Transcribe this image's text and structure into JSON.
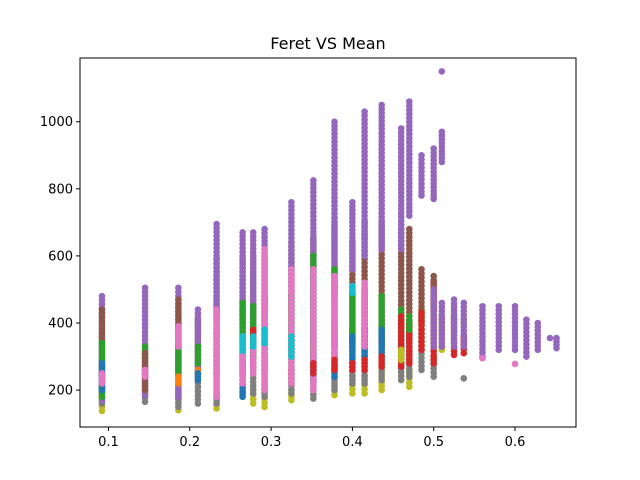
{
  "chart_data": {
    "type": "scatter",
    "title": "Feret VS Mean",
    "xlabel": "",
    "ylabel": "",
    "xlim": [
      0.065,
      0.675
    ],
    "ylim": [
      90,
      1190
    ],
    "xticks": [
      0.1,
      0.2,
      0.3,
      0.4,
      0.5,
      0.6
    ],
    "xtick_labels": [
      "0.1",
      "0.2",
      "0.3",
      "0.4",
      "0.5",
      "0.6"
    ],
    "yticks": [
      200,
      400,
      600,
      800,
      1000
    ],
    "ytick_labels": [
      "200",
      "400",
      "600",
      "800",
      "1000"
    ],
    "grid": false,
    "legend": "none",
    "marker_size": 6,
    "columns": [
      {
        "x": 0.092,
        "segments": [
          {
            "color": "#bcbd22",
            "lo": 138,
            "hi": 190
          },
          {
            "color": "#7f7f7f",
            "lo": 160,
            "hi": 290
          },
          {
            "color": "#9467bd",
            "lo": 170,
            "hi": 480
          },
          {
            "color": "#8c564b",
            "lo": 200,
            "hi": 440
          },
          {
            "color": "#2ca02c",
            "lo": 180,
            "hi": 340
          },
          {
            "color": "#1f77b4",
            "lo": 200,
            "hi": 280
          },
          {
            "color": "#e377c2",
            "lo": 220,
            "hi": 250
          }
        ]
      },
      {
        "x": 0.145,
        "segments": [
          {
            "color": "#7f7f7f",
            "lo": 165,
            "hi": 260
          },
          {
            "color": "#9467bd",
            "lo": 185,
            "hi": 505
          },
          {
            "color": "#2ca02c",
            "lo": 250,
            "hi": 330
          },
          {
            "color": "#8c564b",
            "lo": 200,
            "hi": 310
          },
          {
            "color": "#e377c2",
            "lo": 240,
            "hi": 260
          }
        ]
      },
      {
        "x": 0.186,
        "segments": [
          {
            "color": "#bcbd22",
            "lo": 140,
            "hi": 200
          },
          {
            "color": "#7f7f7f",
            "lo": 150,
            "hi": 300
          },
          {
            "color": "#9467bd",
            "lo": 180,
            "hi": 505
          },
          {
            "color": "#8c564b",
            "lo": 260,
            "hi": 470
          },
          {
            "color": "#2ca02c",
            "lo": 250,
            "hi": 330
          },
          {
            "color": "#e377c2",
            "lo": 330,
            "hi": 390
          },
          {
            "color": "#ff7f0e",
            "lo": 220,
            "hi": 240
          }
        ]
      },
      {
        "x": 0.21,
        "segments": [
          {
            "color": "#7f7f7f",
            "lo": 160,
            "hi": 270
          },
          {
            "color": "#8c564b",
            "lo": 260,
            "hi": 410
          },
          {
            "color": "#9467bd",
            "lo": 250,
            "hi": 440
          },
          {
            "color": "#2ca02c",
            "lo": 280,
            "hi": 330
          },
          {
            "color": "#ff7f0e",
            "lo": 240,
            "hi": 260
          },
          {
            "color": "#1f77b4",
            "lo": 230,
            "hi": 250
          }
        ]
      },
      {
        "x": 0.233,
        "segments": [
          {
            "color": "#bcbd22",
            "lo": 145,
            "hi": 190
          },
          {
            "color": "#7f7f7f",
            "lo": 160,
            "hi": 300
          },
          {
            "color": "#8c564b",
            "lo": 250,
            "hi": 590
          },
          {
            "color": "#9467bd",
            "lo": 400,
            "hi": 695
          },
          {
            "color": "#2ca02c",
            "lo": 300,
            "hi": 380
          },
          {
            "color": "#e377c2",
            "lo": 180,
            "hi": 440
          }
        ]
      },
      {
        "x": 0.265,
        "segments": [
          {
            "color": "#7f7f7f",
            "lo": 185,
            "hi": 300
          },
          {
            "color": "#8c564b",
            "lo": 250,
            "hi": 590
          },
          {
            "color": "#9467bd",
            "lo": 400,
            "hi": 670
          },
          {
            "color": "#2ca02c",
            "lo": 290,
            "hi": 460
          },
          {
            "color": "#1f77b4",
            "lo": 180,
            "hi": 280
          },
          {
            "color": "#17becf",
            "lo": 300,
            "hi": 360
          },
          {
            "color": "#e377c2",
            "lo": 220,
            "hi": 300
          }
        ]
      },
      {
        "x": 0.278,
        "segments": [
          {
            "color": "#bcbd22",
            "lo": 160,
            "hi": 200
          },
          {
            "color": "#7f7f7f",
            "lo": 190,
            "hi": 340
          },
          {
            "color": "#8c564b",
            "lo": 270,
            "hi": 600
          },
          {
            "color": "#9467bd",
            "lo": 420,
            "hi": 670
          },
          {
            "color": "#2ca02c",
            "lo": 300,
            "hi": 450
          },
          {
            "color": "#d62728",
            "lo": 350,
            "hi": 380
          },
          {
            "color": "#e377c2",
            "lo": 250,
            "hi": 330
          },
          {
            "color": "#17becf",
            "lo": 330,
            "hi": 360
          }
        ]
      },
      {
        "x": 0.292,
        "segments": [
          {
            "color": "#bcbd22",
            "lo": 150,
            "hi": 200
          },
          {
            "color": "#7f7f7f",
            "lo": 180,
            "hi": 300
          },
          {
            "color": "#8c564b",
            "lo": 260,
            "hi": 600
          },
          {
            "color": "#9467bd",
            "lo": 420,
            "hi": 680
          },
          {
            "color": "#2ca02c",
            "lo": 310,
            "hi": 470
          },
          {
            "color": "#e377c2",
            "lo": 200,
            "hi": 620
          },
          {
            "color": "#17becf",
            "lo": 340,
            "hi": 380
          }
        ]
      },
      {
        "x": 0.325,
        "segments": [
          {
            "color": "#bcbd22",
            "lo": 170,
            "hi": 200
          },
          {
            "color": "#7f7f7f",
            "lo": 190,
            "hi": 340
          },
          {
            "color": "#8c564b",
            "lo": 280,
            "hi": 640
          },
          {
            "color": "#9467bd",
            "lo": 440,
            "hi": 760
          },
          {
            "color": "#2ca02c",
            "lo": 320,
            "hi": 480
          },
          {
            "color": "#d62728",
            "lo": 220,
            "hi": 260
          },
          {
            "color": "#e377c2",
            "lo": 220,
            "hi": 560
          },
          {
            "color": "#17becf",
            "lo": 300,
            "hi": 360
          }
        ]
      },
      {
        "x": 0.352,
        "segments": [
          {
            "color": "#bcbd22",
            "lo": 175,
            "hi": 200
          },
          {
            "color": "#7f7f7f",
            "lo": 175,
            "hi": 330
          },
          {
            "color": "#8c564b",
            "lo": 270,
            "hi": 650
          },
          {
            "color": "#9467bd",
            "lo": 420,
            "hi": 825
          },
          {
            "color": "#2ca02c",
            "lo": 300,
            "hi": 600
          },
          {
            "color": "#1f77b4",
            "lo": 230,
            "hi": 300
          },
          {
            "color": "#e377c2",
            "lo": 200,
            "hi": 560
          },
          {
            "color": "#d62728",
            "lo": 250,
            "hi": 280
          }
        ]
      },
      {
        "x": 0.378,
        "segments": [
          {
            "color": "#bcbd22",
            "lo": 185,
            "hi": 230
          },
          {
            "color": "#7f7f7f",
            "lo": 200,
            "hi": 370
          },
          {
            "color": "#8c564b",
            "lo": 300,
            "hi": 700
          },
          {
            "color": "#9467bd",
            "lo": 500,
            "hi": 1000
          },
          {
            "color": "#2ca02c",
            "lo": 330,
            "hi": 560
          },
          {
            "color": "#1f77b4",
            "lo": 240,
            "hi": 300
          },
          {
            "color": "#e377c2",
            "lo": 290,
            "hi": 540
          },
          {
            "color": "#d62728",
            "lo": 260,
            "hi": 290
          }
        ]
      },
      {
        "x": 0.4,
        "segments": [
          {
            "color": "#bcbd22",
            "lo": 190,
            "hi": 240
          },
          {
            "color": "#7f7f7f",
            "lo": 220,
            "hi": 380
          },
          {
            "color": "#8c564b",
            "lo": 330,
            "hi": 640
          },
          {
            "color": "#9467bd",
            "lo": 560,
            "hi": 760
          },
          {
            "color": "#2ca02c",
            "lo": 350,
            "hi": 500
          },
          {
            "color": "#1f77b4",
            "lo": 280,
            "hi": 360
          },
          {
            "color": "#d62728",
            "lo": 260,
            "hi": 280
          },
          {
            "color": "#17becf",
            "lo": 490,
            "hi": 510
          }
        ]
      },
      {
        "x": 0.415,
        "segments": [
          {
            "color": "#bcbd22",
            "lo": 190,
            "hi": 240
          },
          {
            "color": "#7f7f7f",
            "lo": 220,
            "hi": 400
          },
          {
            "color": "#8c564b",
            "lo": 300,
            "hi": 700
          },
          {
            "color": "#9467bd",
            "lo": 600,
            "hi": 1030
          },
          {
            "color": "#2ca02c",
            "lo": 350,
            "hi": 500
          },
          {
            "color": "#1f77b4",
            "lo": 290,
            "hi": 380
          },
          {
            "color": "#e377c2",
            "lo": 330,
            "hi": 520
          },
          {
            "color": "#d62728",
            "lo": 260,
            "hi": 290
          }
        ]
      },
      {
        "x": 0.436,
        "segments": [
          {
            "color": "#bcbd22",
            "lo": 200,
            "hi": 260
          },
          {
            "color": "#7f7f7f",
            "lo": 230,
            "hi": 400
          },
          {
            "color": "#8c564b",
            "lo": 330,
            "hi": 700
          },
          {
            "color": "#9467bd",
            "lo": 620,
            "hi": 1050
          },
          {
            "color": "#2ca02c",
            "lo": 360,
            "hi": 480
          },
          {
            "color": "#1f77b4",
            "lo": 300,
            "hi": 380
          },
          {
            "color": "#d62728",
            "lo": 270,
            "hi": 300
          }
        ]
      },
      {
        "x": 0.46,
        "segments": [
          {
            "color": "#7f7f7f",
            "lo": 230,
            "hi": 360
          },
          {
            "color": "#8c564b",
            "lo": 300,
            "hi": 680
          },
          {
            "color": "#9467bd",
            "lo": 620,
            "hi": 980
          },
          {
            "color": "#2ca02c",
            "lo": 360,
            "hi": 440
          },
          {
            "color": "#1f77b4",
            "lo": 300,
            "hi": 400
          },
          {
            "color": "#d62728",
            "lo": 270,
            "hi": 420
          },
          {
            "color": "#bcbd22",
            "lo": 290,
            "hi": 320
          }
        ]
      },
      {
        "x": 0.47,
        "segments": [
          {
            "color": "#bcbd22",
            "lo": 210,
            "hi": 260
          },
          {
            "color": "#7f7f7f",
            "lo": 240,
            "hi": 380
          },
          {
            "color": "#8c564b",
            "lo": 350,
            "hi": 680
          },
          {
            "color": "#9467bd",
            "lo": 720,
            "hi": 1060
          },
          {
            "color": "#d62728",
            "lo": 280,
            "hi": 400
          },
          {
            "color": "#2ca02c",
            "lo": 380,
            "hi": 420
          }
        ]
      },
      {
        "x": 0.485,
        "segments": [
          {
            "color": "#bcbd22",
            "lo": 320,
            "hi": 440
          },
          {
            "color": "#7f7f7f",
            "lo": 260,
            "hi": 380
          },
          {
            "color": "#8c564b",
            "lo": 400,
            "hi": 560
          },
          {
            "color": "#d62728",
            "lo": 320,
            "hi": 430
          },
          {
            "color": "#9467bd",
            "lo": 780,
            "hi": 900
          }
        ]
      },
      {
        "x": 0.5,
        "segments": [
          {
            "color": "#7f7f7f",
            "lo": 240,
            "hi": 300
          },
          {
            "color": "#bcbd22",
            "lo": 330,
            "hi": 450
          },
          {
            "color": "#d62728",
            "lo": 280,
            "hi": 520
          },
          {
            "color": "#8c564b",
            "lo": 440,
            "hi": 540
          },
          {
            "color": "#9467bd",
            "lo": 330,
            "hi": 500
          },
          {
            "color": "#9467bd",
            "lo": 770,
            "hi": 920
          }
        ]
      },
      {
        "x": 0.51,
        "segments": [
          {
            "color": "#9467bd",
            "lo": 880,
            "hi": 970
          },
          {
            "color": "#9467bd",
            "lo": 1150,
            "hi": 1150
          },
          {
            "color": "#bcbd22",
            "lo": 320,
            "hi": 420
          },
          {
            "color": "#9467bd",
            "lo": 330,
            "hi": 460
          }
        ]
      },
      {
        "x": 0.525,
        "segments": [
          {
            "color": "#d62728",
            "lo": 305,
            "hi": 420
          },
          {
            "color": "#bcbd22",
            "lo": 340,
            "hi": 450
          },
          {
            "color": "#9467bd",
            "lo": 330,
            "hi": 470
          }
        ]
      },
      {
        "x": 0.537,
        "segments": [
          {
            "color": "#7f7f7f",
            "lo": 235,
            "hi": 235
          },
          {
            "color": "#d62728",
            "lo": 310,
            "hi": 360
          },
          {
            "color": "#bcbd22",
            "lo": 390,
            "hi": 410
          },
          {
            "color": "#9467bd",
            "lo": 330,
            "hi": 460
          }
        ]
      },
      {
        "x": 0.56,
        "segments": [
          {
            "color": "#9467bd",
            "lo": 300,
            "hi": 450
          },
          {
            "color": "#e377c2",
            "lo": 295,
            "hi": 295
          }
        ]
      },
      {
        "x": 0.58,
        "segments": [
          {
            "color": "#9467bd",
            "lo": 320,
            "hi": 450
          }
        ]
      },
      {
        "x": 0.6,
        "segments": [
          {
            "color": "#9467bd",
            "lo": 320,
            "hi": 450
          },
          {
            "color": "#e377c2",
            "lo": 278,
            "hi": 278
          }
        ]
      },
      {
        "x": 0.614,
        "segments": [
          {
            "color": "#9467bd",
            "lo": 300,
            "hi": 410
          }
        ]
      },
      {
        "x": 0.628,
        "segments": [
          {
            "color": "#9467bd",
            "lo": 320,
            "hi": 400
          }
        ]
      },
      {
        "x": 0.643,
        "segments": [
          {
            "color": "#9467bd",
            "lo": 355,
            "hi": 355
          }
        ]
      },
      {
        "x": 0.651,
        "segments": [
          {
            "color": "#9467bd",
            "lo": 325,
            "hi": 355
          }
        ]
      }
    ]
  }
}
